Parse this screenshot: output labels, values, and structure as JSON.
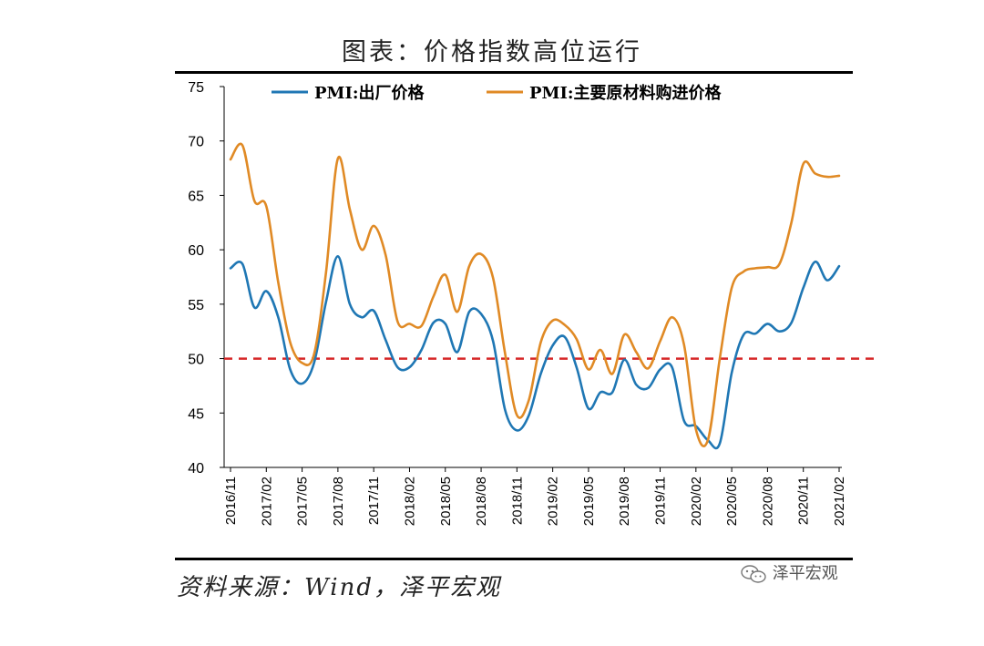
{
  "title": "图表：价格指数高位运行",
  "source": "资料来源：Wind，泽平宏观",
  "watermark": "泽平宏观",
  "chart_data": {
    "type": "line",
    "title": "图表：价格指数高位运行",
    "xlabel": "",
    "ylabel": "",
    "ylim": [
      40,
      75
    ],
    "yticks": [
      40,
      45,
      50,
      55,
      60,
      65,
      70,
      75
    ],
    "xtick_labels": [
      "2016/11",
      "2017/02",
      "2017/05",
      "2017/08",
      "2017/11",
      "2018/02",
      "2018/05",
      "2018/08",
      "2018/11",
      "2019/02",
      "2019/05",
      "2019/08",
      "2019/11",
      "2020/02",
      "2020/05",
      "2020/08",
      "2020/11",
      "2021/02"
    ],
    "x": [
      "2016/11",
      "2016/12",
      "2017/01",
      "2017/02",
      "2017/03",
      "2017/04",
      "2017/05",
      "2017/06",
      "2017/07",
      "2017/08",
      "2017/09",
      "2017/10",
      "2017/11",
      "2017/12",
      "2018/01",
      "2018/02",
      "2018/03",
      "2018/04",
      "2018/05",
      "2018/06",
      "2018/07",
      "2018/08",
      "2018/09",
      "2018/10",
      "2018/11",
      "2018/12",
      "2019/01",
      "2019/02",
      "2019/03",
      "2019/04",
      "2019/05",
      "2019/06",
      "2019/07",
      "2019/08",
      "2019/09",
      "2019/10",
      "2019/11",
      "2019/12",
      "2020/01",
      "2020/02",
      "2020/03",
      "2020/04",
      "2020/05",
      "2020/06",
      "2020/07",
      "2020/08",
      "2020/09",
      "2020/10",
      "2020/11",
      "2020/12",
      "2021/01",
      "2021/02"
    ],
    "series": [
      {
        "name": "PMI:出厂价格",
        "color": "#1f77b4",
        "values": [
          58.3,
          58.7,
          54.7,
          56.2,
          53.8,
          49.0,
          47.7,
          49.6,
          55.2,
          59.4,
          55.0,
          53.8,
          54.4,
          51.7,
          49.2,
          49.2,
          50.8,
          53.3,
          53.2,
          50.6,
          54.3,
          54.1,
          51.6,
          45.3,
          43.4,
          44.8,
          48.6,
          51.2,
          52.0,
          49.2,
          45.4,
          46.9,
          46.9,
          49.9,
          47.6,
          47.3,
          49.0,
          49.2,
          44.3,
          43.8,
          42.5,
          42.2,
          48.7,
          52.2,
          52.3,
          53.2,
          52.5,
          53.3,
          56.5,
          58.9,
          57.2,
          58.5
        ]
      },
      {
        "name": "PMI:主要原材料购进价格",
        "color": "#e08a25",
        "values": [
          68.3,
          69.6,
          64.5,
          64.0,
          57.0,
          51.5,
          49.6,
          50.4,
          57.9,
          68.4,
          63.7,
          60.0,
          62.2,
          59.5,
          53.4,
          53.2,
          53.0,
          55.7,
          57.7,
          54.3,
          58.5,
          59.6,
          57.4,
          50.5,
          44.8,
          46.2,
          51.5,
          53.5,
          53.1,
          51.8,
          49.0,
          50.8,
          48.6,
          52.2,
          50.6,
          49.1,
          51.6,
          53.8,
          51.3,
          43.5,
          42.5,
          50.0,
          56.5,
          58.0,
          58.3,
          58.4,
          58.7,
          62.5,
          67.9,
          67.0,
          66.7,
          66.8
        ]
      }
    ],
    "reference_line": {
      "value": 50,
      "color": "#d62728",
      "style": "dashed"
    },
    "legend": "top"
  }
}
